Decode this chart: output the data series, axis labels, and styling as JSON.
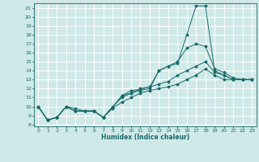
{
  "xlabel": "Humidex (Indice chaleur)",
  "background_color": "#cfe8e8",
  "grid_color": "#ffffff",
  "line_color": "#1a6b6b",
  "xlim": [
    -0.5,
    23.5
  ],
  "ylim": [
    7.8,
    21.5
  ],
  "xticks": [
    0,
    1,
    2,
    3,
    4,
    5,
    6,
    7,
    8,
    9,
    10,
    11,
    12,
    13,
    14,
    15,
    16,
    17,
    18,
    19,
    20,
    21,
    22,
    23
  ],
  "yticks": [
    8,
    9,
    10,
    11,
    12,
    13,
    14,
    15,
    16,
    17,
    18,
    19,
    20,
    21
  ],
  "series": [
    [
      10.0,
      8.5,
      8.8,
      10.0,
      9.8,
      9.5,
      9.5,
      8.8,
      9.9,
      11.2,
      11.5,
      11.8,
      12.0,
      14.0,
      14.5,
      14.8,
      18.0,
      21.2,
      21.2,
      14.0,
      13.5,
      13.0,
      13.0,
      13.0
    ],
    [
      10.0,
      8.5,
      8.8,
      10.0,
      9.5,
      9.5,
      9.5,
      8.8,
      9.9,
      11.2,
      11.8,
      11.9,
      12.2,
      14.0,
      14.5,
      15.0,
      16.5,
      17.0,
      16.7,
      14.2,
      13.8,
      13.2,
      13.0,
      13.0
    ],
    [
      10.0,
      8.5,
      8.8,
      10.0,
      9.5,
      9.5,
      9.5,
      8.8,
      10.0,
      11.0,
      11.5,
      12.0,
      12.2,
      12.5,
      12.8,
      13.5,
      14.0,
      14.5,
      15.0,
      13.8,
      13.5,
      13.0,
      13.0,
      13.0
    ],
    [
      10.0,
      8.5,
      8.8,
      10.0,
      9.5,
      9.5,
      9.5,
      8.8,
      9.8,
      10.5,
      11.0,
      11.5,
      11.8,
      12.0,
      12.2,
      12.5,
      13.0,
      13.5,
      14.2,
      13.5,
      13.0,
      13.0,
      13.0,
      13.0
    ]
  ]
}
